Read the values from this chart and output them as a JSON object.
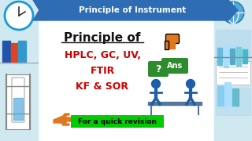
{
  "bg_color": "#ffffff",
  "banner_color": "#2e6db4",
  "banner_text": "Principle of Instrument",
  "banner_text_color": "#ffffff",
  "title_text": "Principle of",
  "title_color": "#111111",
  "lines": [
    "HPLC, GC, UV,",
    "FTIR",
    "KF & SOR"
  ],
  "lines_color": "#cc0000",
  "footer_text": "For a quick revision",
  "footer_bg": "#00cc00",
  "footer_color": "#000000",
  "thumb_color": "#e07820",
  "qa_bubble_color": "#2e8b2e",
  "person_color": "#1a5fa8",
  "left_bg": "#d0e8f0",
  "right_bg": "#d0e8f0",
  "clock_color": "#1a9ad4",
  "globe_color": "#55aadd",
  "shelf_color": "#bbddee",
  "binder_colors": [
    "#2255aa",
    "#dd4422",
    "#3399cc"
  ],
  "tube_color": "#88ccee",
  "tube_liquid": "#55aadd"
}
